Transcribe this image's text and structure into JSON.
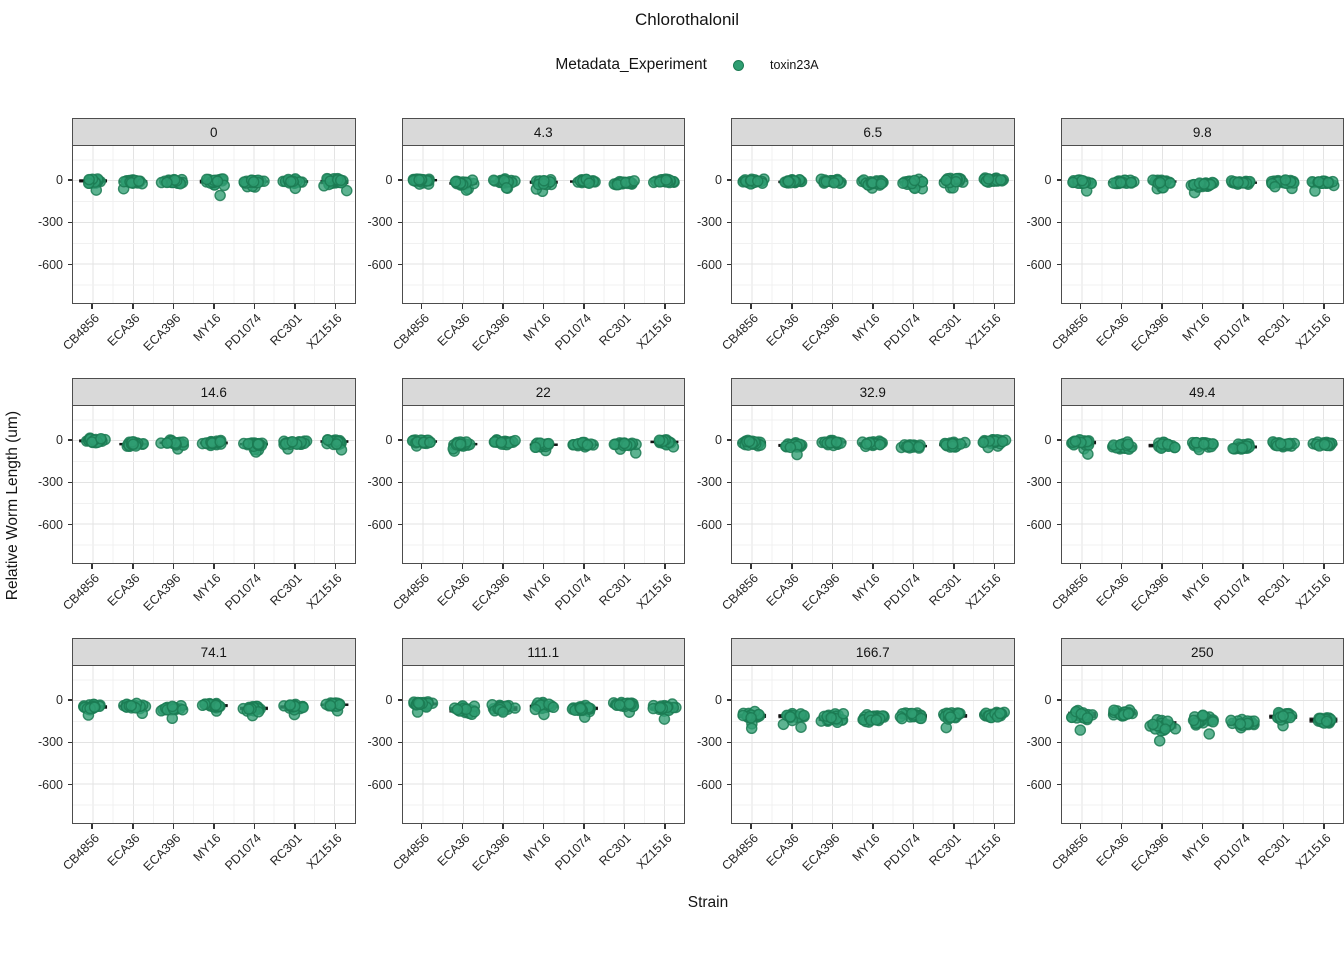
{
  "chart_data": {
    "type": "boxplot+jitter",
    "title": "Chlorothalonil",
    "legend_title": "Metadata_Experiment",
    "legend_items": [
      {
        "label": "toxin23A",
        "color": "#2f9e72"
      }
    ],
    "xlabel": "Strain",
    "ylabel": "Relative Worm Length (um)",
    "strains": [
      "CB4856",
      "ECA36",
      "ECA396",
      "MY16",
      "PD1074",
      "RC301",
      "XZ1516"
    ],
    "y_ticks": [
      0,
      -300,
      -600
    ],
    "ylim": [
      250,
      -880
    ],
    "grid": {
      "major_h": [
        0,
        -300,
        -600
      ],
      "minor_h": [
        150,
        -150,
        -450,
        -750
      ]
    },
    "legend_position": "top",
    "points_per_group": 23,
    "facets": [
      {
        "label": "0",
        "medians": [
          0,
          -5,
          -8,
          -5,
          -5,
          -5,
          -8
        ],
        "spreads": [
          18,
          14,
          14,
          22,
          13,
          15,
          24
        ]
      },
      {
        "label": "4.3",
        "medians": [
          5,
          -18,
          -5,
          -10,
          -5,
          -15,
          -3
        ],
        "spreads": [
          13,
          16,
          14,
          18,
          13,
          14,
          14
        ]
      },
      {
        "label": "6.5",
        "medians": [
          -5,
          -8,
          -5,
          -13,
          -10,
          0,
          5
        ],
        "spreads": [
          16,
          14,
          14,
          14,
          14,
          14,
          14
        ]
      },
      {
        "label": "9.8",
        "medians": [
          -10,
          -10,
          -5,
          -25,
          -13,
          -10,
          -14
        ],
        "spreads": [
          14,
          13,
          13,
          17,
          13,
          13,
          14
        ]
      },
      {
        "label": "14.6",
        "medians": [
          0,
          -24,
          -14,
          -15,
          -24,
          -14,
          -5
        ],
        "spreads": [
          17,
          14,
          14,
          17,
          14,
          15,
          15
        ]
      },
      {
        "label": "22",
        "medians": [
          -5,
          -24,
          -10,
          -28,
          -28,
          -24,
          -8
        ],
        "spreads": [
          14,
          14,
          17,
          14,
          14,
          14,
          14
        ]
      },
      {
        "label": "32.9",
        "medians": [
          -14,
          -33,
          -10,
          -20,
          -38,
          -28,
          -5
        ],
        "spreads": [
          17,
          17,
          15,
          17,
          14,
          17,
          12
        ]
      },
      {
        "label": "49.4",
        "medians": [
          -12,
          -45,
          -34,
          -25,
          -44,
          -26,
          -24
        ],
        "spreads": [
          20,
          28,
          20,
          17,
          17,
          14,
          15
        ]
      },
      {
        "label": "74.1",
        "medians": [
          -44,
          -38,
          -54,
          -34,
          -54,
          -44,
          -28
        ],
        "spreads": [
          20,
          17,
          20,
          17,
          19,
          19,
          14
        ]
      },
      {
        "label": "111.1",
        "medians": [
          -22,
          -64,
          -55,
          -40,
          -54,
          -30,
          -54
        ],
        "spreads": [
          17,
          30,
          27,
          20,
          19,
          21,
          23
        ]
      },
      {
        "label": "166.7",
        "medians": [
          -108,
          -110,
          -124,
          -128,
          -110,
          -108,
          -98
        ],
        "spreads": [
          23,
          23,
          32,
          28,
          23,
          21,
          23
        ]
      },
      {
        "label": "250",
        "medians": [
          -100,
          -90,
          -172,
          -138,
          -158,
          -114,
          -138
        ],
        "spreads": [
          36,
          23,
          42,
          28,
          23,
          23,
          28
        ]
      }
    ],
    "colors": {
      "point_fill": "#2f9e72",
      "point_stroke": "#1b7a52",
      "box": "#272727",
      "box_line": "#111111",
      "strip_bg": "#d9d9d9",
      "panel_border": "#4d4d4d",
      "grid_major": "#e3e3e3",
      "grid_minor": "#f1f1f1",
      "tick": "#333333",
      "text": "#141414"
    }
  }
}
